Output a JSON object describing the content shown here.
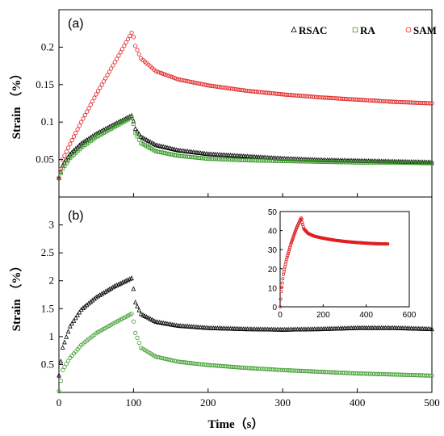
{
  "colors": {
    "RSAC": "#000000",
    "RA": "#3a9b2a",
    "SAM": "#e02020"
  },
  "chart_data": [
    {
      "type": "scatter",
      "panel_label": "(a)",
      "ylabel": "Strain （%）",
      "xlabel": "",
      "xlim": [
        0,
        500
      ],
      "ylim": [
        0,
        0.25
      ],
      "yticks": [
        "0.05",
        "0.1",
        "0.15",
        "0.2"
      ],
      "xticks": [
        "0",
        "100",
        "200",
        "300",
        "400",
        "500"
      ],
      "grid": false,
      "legend": "top-right",
      "series": [
        {
          "name": "RSAC",
          "marker": "triangle",
          "color_key": "RSAC",
          "x": [
            0,
            5,
            15,
            30,
            50,
            75,
            99,
            101,
            110,
            130,
            160,
            200,
            250,
            300,
            350,
            400,
            450,
            500
          ],
          "y": [
            0.025,
            0.042,
            0.057,
            0.071,
            0.084,
            0.097,
            0.109,
            0.093,
            0.08,
            0.069,
            0.062,
            0.057,
            0.054,
            0.051,
            0.049,
            0.048,
            0.047,
            0.046
          ]
        },
        {
          "name": "RA",
          "marker": "square",
          "color_key": "RA",
          "x": [
            0,
            5,
            15,
            30,
            50,
            75,
            99,
            101,
            110,
            130,
            160,
            200,
            250,
            300,
            350,
            400,
            450,
            500
          ],
          "y": [
            0.025,
            0.038,
            0.052,
            0.066,
            0.08,
            0.094,
            0.107,
            0.088,
            0.072,
            0.061,
            0.055,
            0.051,
            0.049,
            0.048,
            0.047,
            0.046,
            0.046,
            0.045
          ]
        },
        {
          "name": "SAM",
          "marker": "circle",
          "color_key": "SAM",
          "x": [
            0,
            5,
            15,
            30,
            50,
            75,
            99,
            101,
            110,
            130,
            160,
            200,
            250,
            300,
            350,
            400,
            450,
            500
          ],
          "y": [
            0.025,
            0.05,
            0.071,
            0.1,
            0.137,
            0.18,
            0.222,
            0.205,
            0.185,
            0.168,
            0.157,
            0.149,
            0.142,
            0.137,
            0.133,
            0.13,
            0.127,
            0.125
          ]
        }
      ]
    },
    {
      "type": "scatter",
      "panel_label": "(b)",
      "ylabel": "Strain （%）",
      "xlabel": "Time（s）",
      "xlim": [
        0,
        500
      ],
      "ylim": [
        0,
        3.5
      ],
      "yticks": [
        "0.5",
        "1",
        "1.5",
        "2",
        "2.5",
        "3"
      ],
      "xticks": [
        "0",
        "100",
        "200",
        "300",
        "400",
        "500"
      ],
      "grid": false,
      "series": [
        {
          "marker": "triangle",
          "color_key": "RSAC",
          "x": [
            0,
            5,
            15,
            30,
            50,
            75,
            99,
            101,
            110,
            130,
            160,
            200,
            250,
            300,
            350,
            400,
            450,
            500
          ],
          "y": [
            0.3,
            0.8,
            1.18,
            1.48,
            1.7,
            1.9,
            2.05,
            1.65,
            1.4,
            1.26,
            1.19,
            1.15,
            1.13,
            1.12,
            1.13,
            1.15,
            1.15,
            1.13
          ]
        },
        {
          "marker": "circle",
          "color_key": "RA",
          "x": [
            0,
            5,
            15,
            30,
            50,
            75,
            99,
            101,
            110,
            130,
            160,
            200,
            250,
            300,
            350,
            400,
            450,
            500
          ],
          "y": [
            0.02,
            0.4,
            0.62,
            0.85,
            1.06,
            1.25,
            1.42,
            1.12,
            0.8,
            0.64,
            0.55,
            0.49,
            0.44,
            0.4,
            0.37,
            0.34,
            0.32,
            0.3
          ]
        }
      ],
      "inset": {
        "type": "scatter",
        "xlim": [
          0,
          600
        ],
        "ylim": [
          0,
          50
        ],
        "xticks": [
          "0",
          "200",
          "400",
          "600"
        ],
        "yticks": [
          "0",
          "10",
          "20",
          "30",
          "40",
          "50"
        ],
        "series": [
          {
            "marker": "circle",
            "color_key": "SAM",
            "x": [
              0,
              5,
              15,
              30,
              50,
              75,
              99,
              101,
              110,
              130,
              160,
              200,
              250,
              300,
              350,
              400,
              450,
              500
            ],
            "y": [
              0,
              8,
              17,
              25,
              33,
              41,
              47,
              45,
              41,
              38.5,
              37,
              36,
              35,
              34.3,
              33.8,
              33.4,
              33.1,
              33
            ]
          }
        ]
      }
    }
  ]
}
